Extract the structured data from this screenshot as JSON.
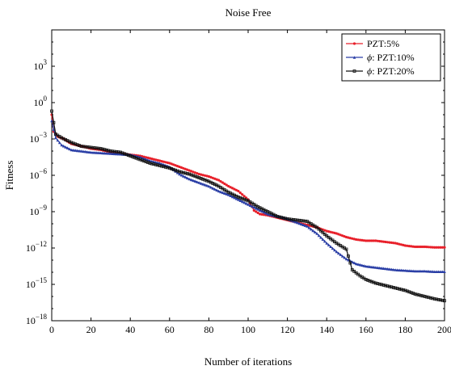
{
  "chart_data": {
    "type": "line",
    "title": "Noise Free",
    "xlabel": "Number of iterations",
    "ylabel": "Fitness",
    "xlim": [
      0,
      200
    ],
    "ylim_log10": [
      -18,
      6
    ],
    "yscale": "log",
    "x_ticks": [
      "0",
      "20",
      "40",
      "60",
      "80",
      "100",
      "120",
      "140",
      "160",
      "180",
      "200"
    ],
    "y_ticks": [
      {
        "base": "10",
        "exp": "−18",
        "log10": -18
      },
      {
        "base": "10",
        "exp": "−15",
        "log10": -15
      },
      {
        "base": "10",
        "exp": "−12",
        "log10": -12
      },
      {
        "base": "10",
        "exp": "−9",
        "log10": -9
      },
      {
        "base": "10",
        "exp": "−6",
        "log10": -6
      },
      {
        "base": "10",
        "exp": "−3",
        "log10": -3
      },
      {
        "base": "10",
        "exp": "0",
        "log10": 0
      },
      {
        "base": "10",
        "exp": "3",
        "log10": 3
      }
    ],
    "legend_position": "top-right",
    "series": [
      {
        "name": "PZT:5%",
        "name_parts": {
          "prefix": "",
          "phi": false,
          "rest": "PZT:5%"
        },
        "color": "#e8202a",
        "marker": "dot",
        "points_log10": [
          [
            0,
            -1
          ],
          [
            1,
            -2.4
          ],
          [
            3,
            -2.8
          ],
          [
            6,
            -3.0
          ],
          [
            10,
            -3.4
          ],
          [
            15,
            -3.6
          ],
          [
            20,
            -3.8
          ],
          [
            25,
            -3.9
          ],
          [
            30,
            -4.1
          ],
          [
            35,
            -4.2
          ],
          [
            40,
            -4.3
          ],
          [
            45,
            -4.4
          ],
          [
            50,
            -4.6
          ],
          [
            55,
            -4.8
          ],
          [
            60,
            -5.0
          ],
          [
            65,
            -5.3
          ],
          [
            70,
            -5.6
          ],
          [
            75,
            -5.9
          ],
          [
            80,
            -6.1
          ],
          [
            85,
            -6.4
          ],
          [
            90,
            -6.9
          ],
          [
            95,
            -7.3
          ],
          [
            100,
            -8.0
          ],
          [
            103,
            -8.9
          ],
          [
            106,
            -9.2
          ],
          [
            110,
            -9.3
          ],
          [
            115,
            -9.5
          ],
          [
            120,
            -9.7
          ],
          [
            125,
            -9.9
          ],
          [
            130,
            -10.1
          ],
          [
            135,
            -10.3
          ],
          [
            140,
            -10.6
          ],
          [
            145,
            -10.8
          ],
          [
            150,
            -11.1
          ],
          [
            155,
            -11.3
          ],
          [
            160,
            -11.4
          ],
          [
            165,
            -11.4
          ],
          [
            170,
            -11.5
          ],
          [
            175,
            -11.6
          ],
          [
            180,
            -11.8
          ],
          [
            185,
            -11.9
          ],
          [
            190,
            -11.9
          ],
          [
            195,
            -11.95
          ],
          [
            200,
            -11.95
          ]
        ]
      },
      {
        "name": "ϕ: PZT:10%",
        "name_parts": {
          "prefix": "ϕ",
          "phi": true,
          "rest": ": PZT:10%"
        },
        "color": "#2b3fa6",
        "marker": "triangle",
        "points_log10": [
          [
            0,
            -1.5
          ],
          [
            2,
            -2.9
          ],
          [
            5,
            -3.5
          ],
          [
            10,
            -3.9
          ],
          [
            15,
            -4.0
          ],
          [
            20,
            -4.1
          ],
          [
            30,
            -4.2
          ],
          [
            40,
            -4.3
          ],
          [
            45,
            -4.5
          ],
          [
            50,
            -4.8
          ],
          [
            55,
            -5.0
          ],
          [
            60,
            -5.3
          ],
          [
            65,
            -5.9
          ],
          [
            70,
            -6.3
          ],
          [
            75,
            -6.6
          ],
          [
            80,
            -6.9
          ],
          [
            85,
            -7.3
          ],
          [
            90,
            -7.6
          ],
          [
            95,
            -8.0
          ],
          [
            100,
            -8.4
          ],
          [
            105,
            -8.8
          ],
          [
            110,
            -9.2
          ],
          [
            115,
            -9.4
          ],
          [
            120,
            -9.6
          ],
          [
            125,
            -9.9
          ],
          [
            130,
            -10.2
          ],
          [
            135,
            -10.8
          ],
          [
            140,
            -11.6
          ],
          [
            145,
            -12.3
          ],
          [
            150,
            -12.9
          ],
          [
            155,
            -13.3
          ],
          [
            160,
            -13.5
          ],
          [
            165,
            -13.6
          ],
          [
            170,
            -13.7
          ],
          [
            175,
            -13.8
          ],
          [
            180,
            -13.85
          ],
          [
            185,
            -13.9
          ],
          [
            190,
            -13.9
          ],
          [
            195,
            -13.95
          ],
          [
            200,
            -13.95
          ]
        ]
      },
      {
        "name": "ϕ: PZT:20%",
        "name_parts": {
          "prefix": "ϕ",
          "phi": true,
          "rest": ": PZT:20%"
        },
        "color": "#111111",
        "marker": "square",
        "points_log10": [
          [
            0,
            -0.7
          ],
          [
            2,
            -2.6
          ],
          [
            5,
            -2.9
          ],
          [
            10,
            -3.3
          ],
          [
            15,
            -3.6
          ],
          [
            20,
            -3.7
          ],
          [
            25,
            -3.8
          ],
          [
            30,
            -4.0
          ],
          [
            35,
            -4.1
          ],
          [
            40,
            -4.4
          ],
          [
            45,
            -4.7
          ],
          [
            50,
            -5.0
          ],
          [
            55,
            -5.2
          ],
          [
            60,
            -5.4
          ],
          [
            65,
            -5.7
          ],
          [
            70,
            -5.9
          ],
          [
            75,
            -6.2
          ],
          [
            80,
            -6.5
          ],
          [
            85,
            -6.9
          ],
          [
            90,
            -7.4
          ],
          [
            95,
            -7.8
          ],
          [
            100,
            -8.1
          ],
          [
            105,
            -8.6
          ],
          [
            110,
            -9.0
          ],
          [
            115,
            -9.4
          ],
          [
            120,
            -9.6
          ],
          [
            125,
            -9.7
          ],
          [
            130,
            -9.8
          ],
          [
            135,
            -10.3
          ],
          [
            140,
            -11.0
          ],
          [
            145,
            -11.6
          ],
          [
            150,
            -12.1
          ],
          [
            153,
            -13.8
          ],
          [
            157,
            -14.3
          ],
          [
            160,
            -14.6
          ],
          [
            165,
            -14.9
          ],
          [
            170,
            -15.1
          ],
          [
            175,
            -15.3
          ],
          [
            180,
            -15.5
          ],
          [
            185,
            -15.8
          ],
          [
            190,
            -16.0
          ],
          [
            195,
            -16.2
          ],
          [
            200,
            -16.35
          ]
        ]
      }
    ]
  }
}
